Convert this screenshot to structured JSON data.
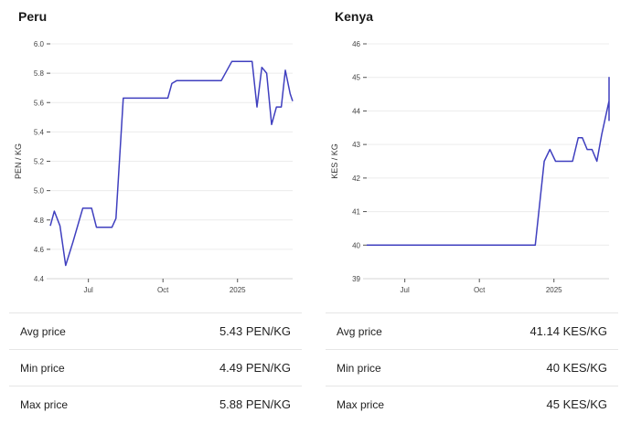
{
  "chart_data": [
    {
      "type": "line",
      "title": "Peru",
      "ylabel": "PEN / KG",
      "ylim": [
        4.4,
        6.0
      ],
      "yticks": [
        "4.4",
        "4.6",
        "4.8",
        "5.0",
        "5.2",
        "5.4",
        "5.6",
        "5.8",
        "6.0"
      ],
      "xlim": [
        "2024-05-15",
        "2025-03-10"
      ],
      "xticks": [
        {
          "date": "2024-07-01",
          "label": "Jul"
        },
        {
          "date": "2024-10-01",
          "label": "Oct"
        },
        {
          "date": "2025-01-01",
          "label": "2025"
        }
      ],
      "color": "#3f3fbf",
      "points": [
        [
          "2024-05-15",
          4.76
        ],
        [
          "2024-05-20",
          4.86
        ],
        [
          "2024-05-27",
          4.76
        ],
        [
          "2024-06-03",
          4.49
        ],
        [
          "2024-06-12",
          4.65
        ],
        [
          "2024-06-24",
          4.88
        ],
        [
          "2024-07-05",
          4.88
        ],
        [
          "2024-07-11",
          4.75
        ],
        [
          "2024-07-20",
          4.75
        ],
        [
          "2024-07-30",
          4.75
        ],
        [
          "2024-08-04",
          4.81
        ],
        [
          "2024-08-13",
          5.63
        ],
        [
          "2024-08-22",
          5.63
        ],
        [
          "2024-09-20",
          5.63
        ],
        [
          "2024-10-07",
          5.63
        ],
        [
          "2024-10-12",
          5.73
        ],
        [
          "2024-10-18",
          5.75
        ],
        [
          "2024-11-10",
          5.75
        ],
        [
          "2024-12-12",
          5.75
        ],
        [
          "2024-12-25",
          5.88
        ],
        [
          "2025-01-05",
          5.88
        ],
        [
          "2025-01-19",
          5.88
        ],
        [
          "2025-01-25",
          5.57
        ],
        [
          "2025-01-31",
          5.84
        ],
        [
          "2025-02-06",
          5.8
        ],
        [
          "2025-02-12",
          5.45
        ],
        [
          "2025-02-18",
          5.57
        ],
        [
          "2025-02-24",
          5.57
        ],
        [
          "2025-03-01",
          5.82
        ],
        [
          "2025-03-07",
          5.66
        ],
        [
          "2025-03-10",
          5.61
        ]
      ],
      "stats": [
        {
          "label": "Avg price",
          "value": "5.43 PEN/KG"
        },
        {
          "label": "Min price",
          "value": "4.49 PEN/KG"
        },
        {
          "label": "Max price",
          "value": "5.88 PEN/KG"
        }
      ]
    },
    {
      "type": "line",
      "title": "Kenya",
      "ylabel": "KES / KG",
      "ylim": [
        39,
        46
      ],
      "yticks": [
        "39",
        "40",
        "41",
        "42",
        "43",
        "44",
        "45",
        "46"
      ],
      "xlim": [
        "2024-05-15",
        "2025-03-10"
      ],
      "xticks": [
        {
          "date": "2024-07-01",
          "label": "Jul"
        },
        {
          "date": "2024-10-01",
          "label": "Oct"
        },
        {
          "date": "2025-01-01",
          "label": "2025"
        }
      ],
      "color": "#3f3fbf",
      "points": [
        [
          "2024-05-15",
          40.0
        ],
        [
          "2024-08-01",
          40.0
        ],
        [
          "2024-11-20",
          40.0
        ],
        [
          "2024-12-09",
          40.0
        ],
        [
          "2024-12-20",
          42.5
        ],
        [
          "2024-12-27",
          42.85
        ],
        [
          "2025-01-03",
          42.5
        ],
        [
          "2025-01-17",
          42.5
        ],
        [
          "2025-01-24",
          42.5
        ],
        [
          "2025-01-31",
          43.2
        ],
        [
          "2025-02-05",
          43.2
        ],
        [
          "2025-02-11",
          42.85
        ],
        [
          "2025-02-17",
          42.85
        ],
        [
          "2025-02-23",
          42.5
        ],
        [
          "2025-03-01",
          43.3
        ],
        [
          "2025-03-10",
          44.3
        ],
        [
          "2025-03-14",
          45.0
        ],
        [
          "2025-03-19",
          45.0
        ],
        [
          "2025-03-25",
          43.7
        ]
      ],
      "stats": [
        {
          "label": "Avg price",
          "value": "41.14 KES/KG"
        },
        {
          "label": "Min price",
          "value": "40 KES/KG"
        },
        {
          "label": "Max price",
          "value": "45 KES/KG"
        }
      ]
    }
  ]
}
